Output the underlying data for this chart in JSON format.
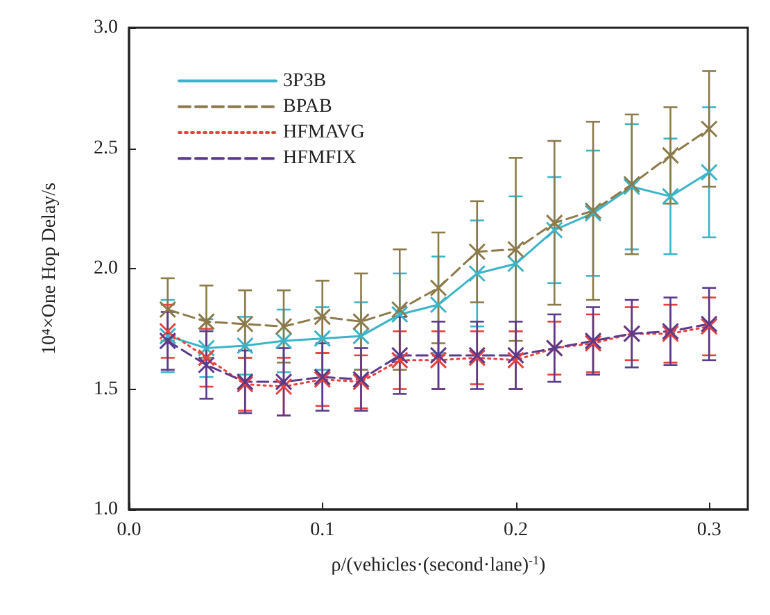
{
  "chart_data": {
    "type": "line",
    "xlabel": "ρ/(vehicles·(second·lane)$^{-1}$)",
    "ylabel": "10⁴×One Hop Delay/s",
    "x": [
      0.02,
      0.04,
      0.06,
      0.08,
      0.1,
      0.12,
      0.14,
      0.16,
      0.18,
      0.2,
      0.22,
      0.24,
      0.26,
      0.28,
      0.3
    ],
    "series": [
      {
        "name": "3P3B",
        "color": "#3bb4c8",
        "line_style": "solid",
        "values": [
          1.72,
          1.67,
          1.68,
          1.7,
          1.71,
          1.72,
          1.81,
          1.85,
          1.98,
          2.02,
          2.16,
          2.23,
          2.34,
          2.3,
          2.4
        ],
        "errors": [
          0.15,
          0.12,
          0.12,
          0.13,
          0.13,
          0.14,
          0.17,
          0.2,
          0.22,
          0.28,
          0.22,
          0.26,
          0.26,
          0.24,
          0.27
        ]
      },
      {
        "name": "BPAB",
        "color": "#8c7a4a",
        "line_style": "dashed",
        "values": [
          1.83,
          1.78,
          1.77,
          1.76,
          1.8,
          1.78,
          1.83,
          1.92,
          2.07,
          2.08,
          2.19,
          2.24,
          2.35,
          2.47,
          2.58
        ],
        "errors": [
          0.13,
          0.15,
          0.14,
          0.15,
          0.15,
          0.2,
          0.25,
          0.23,
          0.21,
          0.38,
          0.34,
          0.37,
          0.29,
          0.2,
          0.24
        ]
      },
      {
        "name": "HFMAVG",
        "color": "#e8413c",
        "line_style": "dotted",
        "values": [
          1.74,
          1.63,
          1.52,
          1.51,
          1.54,
          1.53,
          1.62,
          1.62,
          1.63,
          1.62,
          1.67,
          1.69,
          1.73,
          1.73,
          1.76
        ],
        "errors": [
          0.11,
          0.12,
          0.11,
          0.12,
          0.11,
          0.11,
          0.12,
          0.12,
          0.11,
          0.12,
          0.11,
          0.12,
          0.11,
          0.12,
          0.12
        ]
      },
      {
        "name": "HFMFIX",
        "color": "#5b3a8c",
        "line_style": "dashed",
        "values": [
          1.7,
          1.6,
          1.53,
          1.53,
          1.55,
          1.54,
          1.64,
          1.64,
          1.64,
          1.64,
          1.67,
          1.7,
          1.73,
          1.74,
          1.77
        ],
        "errors": [
          0.12,
          0.14,
          0.13,
          0.14,
          0.14,
          0.13,
          0.16,
          0.14,
          0.14,
          0.14,
          0.14,
          0.14,
          0.14,
          0.14,
          0.15
        ]
      }
    ],
    "xlim": [
      0,
      0.32
    ],
    "xticks": [
      {
        "value": 0,
        "label": "0.0"
      },
      {
        "value": 0.1,
        "label": "0.1"
      },
      {
        "value": 0.2,
        "label": "0.2"
      },
      {
        "value": 0.3,
        "label": "0.3"
      }
    ],
    "ylim": [
      1.0,
      3.0
    ],
    "yticks": [
      {
        "value": 1,
        "label": "1.0"
      },
      {
        "value": 1.5,
        "label": "1.5"
      },
      {
        "value": 2,
        "label": "2.0"
      },
      {
        "value": 2.5,
        "label": "2.5"
      },
      {
        "value": 3,
        "label": "3.0"
      }
    ],
    "grid": false,
    "legend": "top left",
    "marker": "cross"
  }
}
